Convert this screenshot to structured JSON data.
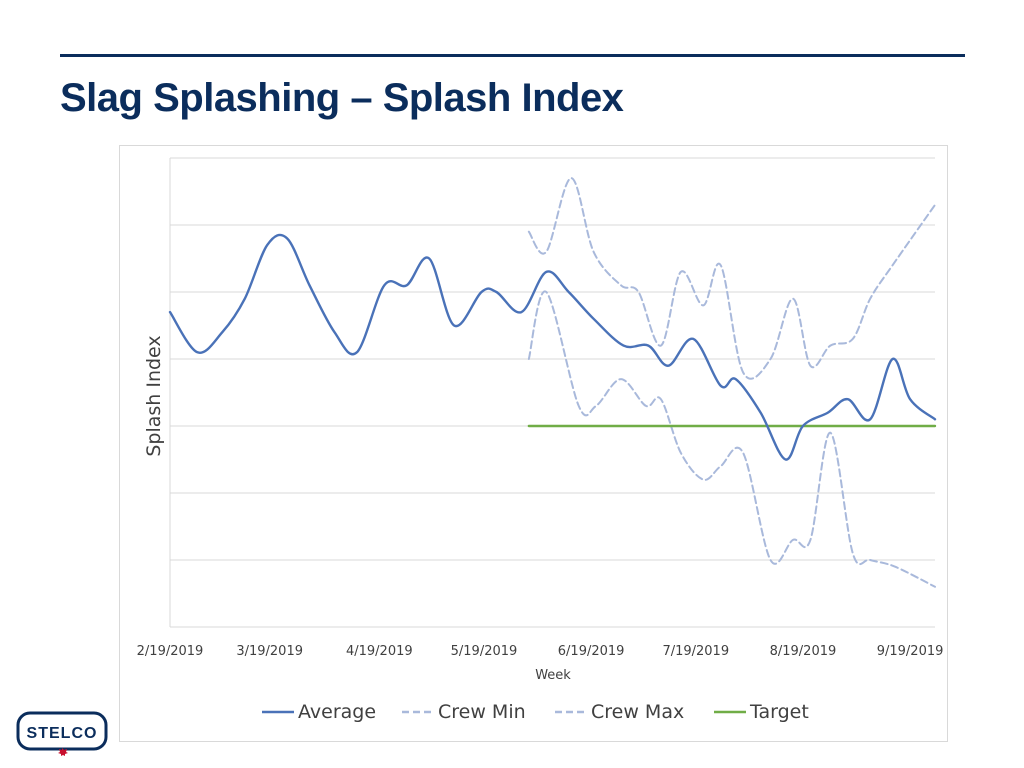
{
  "slide": {
    "title": "Slag Splashing – Splash Index",
    "logo_text": "STELCO",
    "colors": {
      "title": "#0b2d5c",
      "rule": "#0b2d5c"
    }
  },
  "chart_data": {
    "type": "line",
    "title": "",
    "xlabel": "Week",
    "ylabel": "Splash Index",
    "ylim": [
      0,
      7
    ],
    "y_ticks_labeled": false,
    "grid": true,
    "legend_position": "bottom",
    "x_tick_labels": [
      "2/19/2019",
      "3/19/2019",
      "4/19/2019",
      "5/19/2019",
      "6/19/2019",
      "7/19/2019",
      "8/19/2019",
      "9/19/2019"
    ],
    "x_tick_weeks": [
      0,
      4,
      8.4,
      12.6,
      16.9,
      21.1,
      25.4,
      29.7
    ],
    "series": [
      {
        "name": "Average",
        "style": "solid",
        "color": "#4a72b8",
        "x": [
          0,
          1.1,
          2.1,
          3.0,
          3.9,
          4.7,
          5.6,
          6.6,
          7.5,
          8.6,
          9.5,
          10.4,
          11.4,
          12.5,
          13.1,
          14.1,
          15.1,
          16.0,
          17.0,
          18.2,
          19.2,
          20.0,
          21.0,
          22.1,
          22.7,
          23.7,
          24.7,
          25.4,
          26.4,
          27.2,
          28.1,
          29.0,
          29.7,
          30.7
        ],
        "values": [
          4.7,
          4.1,
          4.4,
          4.9,
          5.7,
          5.8,
          5.1,
          4.4,
          4.1,
          5.1,
          5.1,
          5.5,
          4.5,
          5.0,
          5.0,
          4.7,
          5.3,
          5.0,
          4.6,
          4.2,
          4.2,
          3.9,
          4.3,
          3.6,
          3.7,
          3.2,
          2.5,
          3.0,
          3.2,
          3.4,
          3.1,
          4.0,
          3.4,
          3.1
        ]
      },
      {
        "name": "Crew Min",
        "style": "dashed",
        "color": "#a9b9db",
        "x": [
          14.4,
          15.1,
          16.4,
          17.1,
          18.1,
          19.1,
          19.7,
          20.5,
          21.4,
          22.1,
          23.0,
          24.1,
          25.0,
          25.7,
          26.5,
          27.4,
          28.1,
          29.1,
          30.7
        ],
        "values": [
          4.0,
          5.0,
          3.3,
          3.3,
          3.7,
          3.3,
          3.4,
          2.6,
          2.2,
          2.4,
          2.6,
          1.0,
          1.3,
          1.3,
          2.9,
          1.1,
          1.0,
          0.9,
          0.6
        ]
      },
      {
        "name": "Crew Max",
        "style": "dashed",
        "color": "#a9b9db",
        "x": [
          14.4,
          15.1,
          16.1,
          17.0,
          18.1,
          18.8,
          19.7,
          20.5,
          21.4,
          22.1,
          23.0,
          24.1,
          25.0,
          25.7,
          26.5,
          27.4,
          28.1,
          29.0,
          30.7
        ],
        "values": [
          5.9,
          5.6,
          6.7,
          5.6,
          5.1,
          5.0,
          4.2,
          5.3,
          4.8,
          5.4,
          3.8,
          4.0,
          4.9,
          3.9,
          4.2,
          4.3,
          4.9,
          5.4,
          6.3
        ]
      },
      {
        "name": "Target",
        "style": "solid",
        "color": "#70ad47",
        "x": [
          14.4,
          30.7
        ],
        "values": [
          3.0,
          3.0
        ]
      }
    ]
  }
}
